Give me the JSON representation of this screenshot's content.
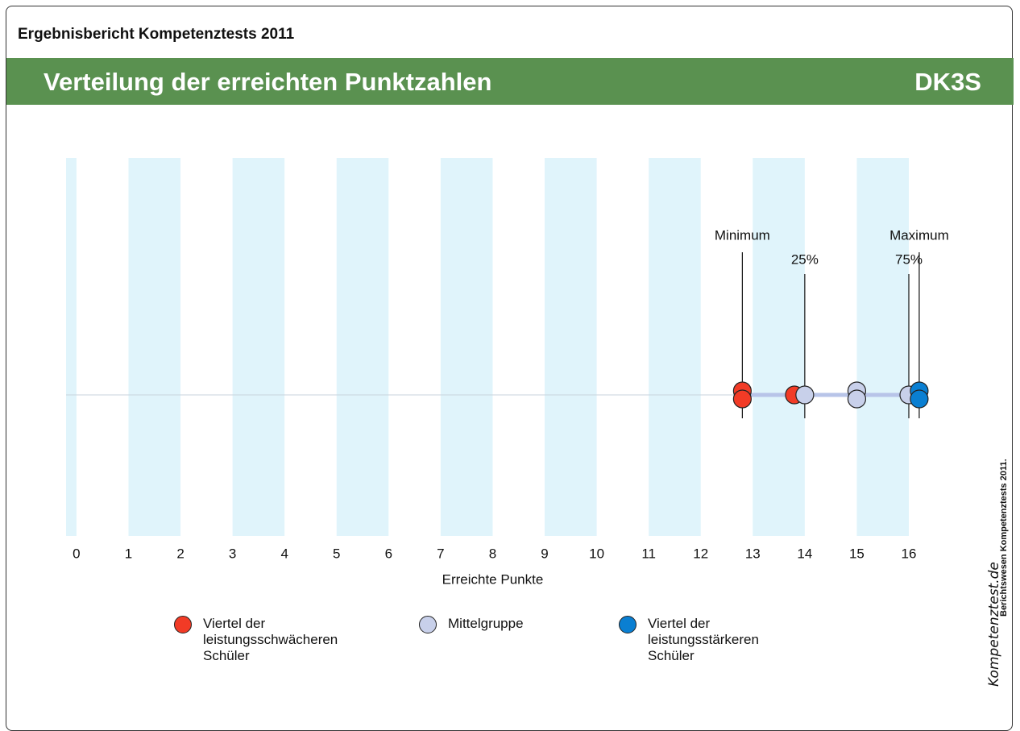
{
  "header": {
    "report": "Ergebnisbericht Kompetenztests 2011",
    "title": "Verteilung der erreichten Punktzahlen",
    "code": "DK3S"
  },
  "footer": {
    "note": "Berichtswesen Kompetenztests 2011.",
    "logo": "Kompetenztest.de"
  },
  "chart_data": {
    "type": "scatter",
    "xlabel": "Erreichte Punkte",
    "xlim": [
      -0.2,
      16
    ],
    "xticks": [
      0,
      1,
      2,
      3,
      4,
      5,
      6,
      7,
      8,
      9,
      10,
      11,
      12,
      13,
      14,
      15,
      16
    ],
    "series": [
      {
        "name": "Viertel der leistungsschwächeren Schüler",
        "color": "#f23b26",
        "x": [
          12.8,
          12.8,
          13.8
        ]
      },
      {
        "name": "Mittelgruppe",
        "color": "#c8d0ea",
        "x": [
          14,
          15,
          15,
          16
        ]
      },
      {
        "name": "Viertel der leistungsstärkeren Schüler",
        "color": "#0a7fd2",
        "x": [
          16.2,
          16.2
        ]
      }
    ],
    "annotations": [
      {
        "label": "Minimum",
        "x": 12.8
      },
      {
        "label": "25%",
        "x": 14
      },
      {
        "label": "75%",
        "x": 16
      },
      {
        "label": "Maximum",
        "x": 16.2
      }
    ],
    "stripe_color": "#e0f4fb",
    "range_color": "#b8c4e8"
  }
}
